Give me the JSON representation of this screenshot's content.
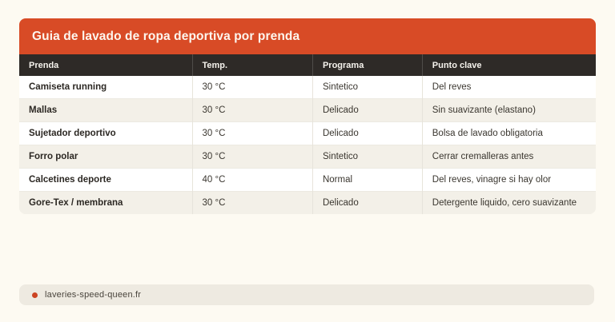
{
  "card": {
    "title": "Guia de lavado de ropa deportiva por prenda",
    "title_bg_color": "#d84b26",
    "header_bg_color": "#2e2a27",
    "stripe_color": "#f3f0e8"
  },
  "table": {
    "columns": [
      "Prenda",
      "Temp.",
      "Programa",
      "Punto clave"
    ],
    "rows": [
      [
        "Camiseta running",
        "30 °C",
        "Sintetico",
        "Del reves"
      ],
      [
        "Mallas",
        "30 °C",
        "Delicado",
        "Sin suavizante (elastano)"
      ],
      [
        "Sujetador deportivo",
        "30 °C",
        "Delicado",
        "Bolsa de lavado obligatoria"
      ],
      [
        "Forro polar",
        "30 °C",
        "Sintetico",
        "Cerrar cremalleras antes"
      ],
      [
        "Calcetines deporte",
        "40 °C",
        "Normal",
        "Del reves, vinagre si hay olor"
      ],
      [
        "Gore-Tex / membrana",
        "30 °C",
        "Delicado",
        "Detergente liquido, cero suavizante"
      ]
    ]
  },
  "footer": {
    "source": "laveries-speed-queen.fr",
    "dot_color": "#cc4423"
  }
}
